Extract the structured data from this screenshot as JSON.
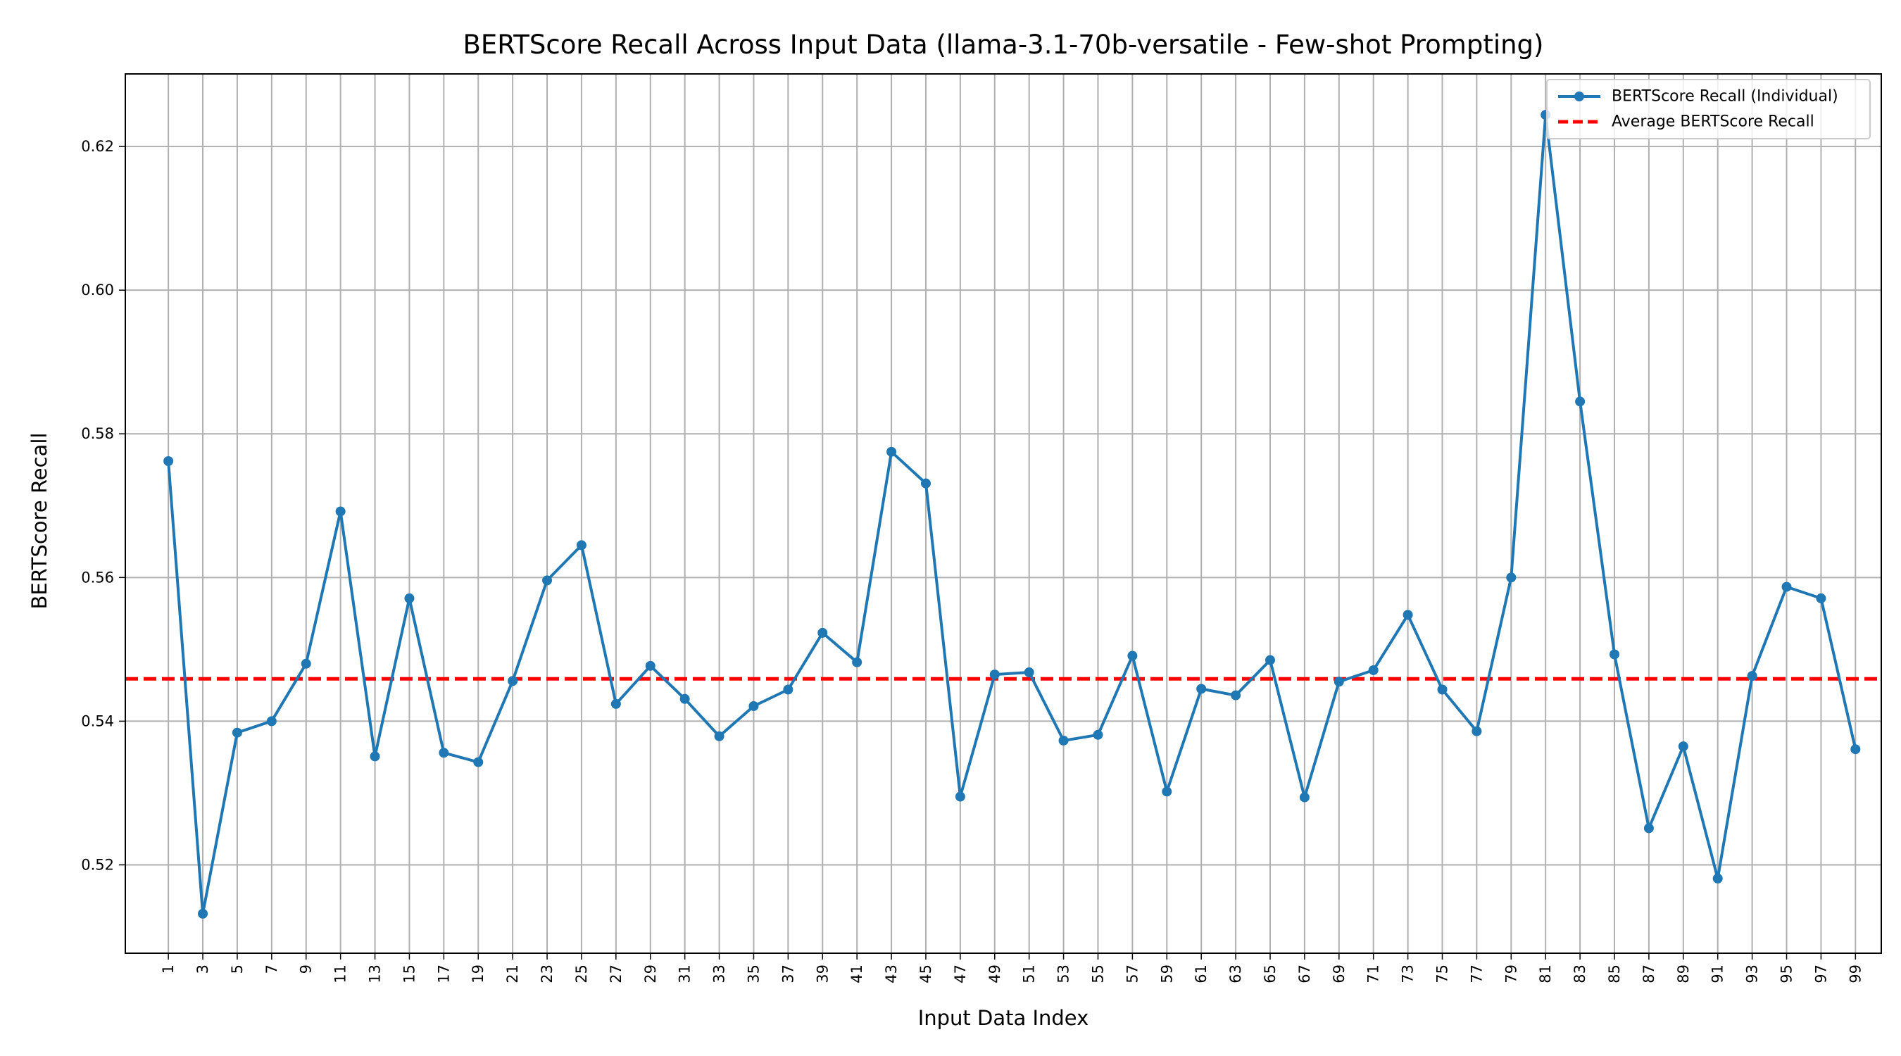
{
  "chart_data": {
    "type": "line",
    "title": "BERTScore Recall Across Input Data (llama-3.1-70b-versatile - Few-shot Prompting)",
    "xlabel": "Input Data Index",
    "ylabel": "BERTScore Recall",
    "xlim": [
      -1.5,
      100.5
    ],
    "ylim": [
      0.5077,
      0.6301
    ],
    "x_ticks": [
      1,
      3,
      5,
      7,
      9,
      11,
      13,
      15,
      17,
      19,
      21,
      23,
      25,
      27,
      29,
      31,
      33,
      35,
      37,
      39,
      41,
      43,
      45,
      47,
      49,
      51,
      53,
      55,
      57,
      59,
      61,
      63,
      65,
      67,
      69,
      71,
      73,
      75,
      77,
      79,
      81,
      83,
      85,
      87,
      89,
      91,
      93,
      95,
      97,
      99
    ],
    "y_ticks": [
      0.52,
      0.54,
      0.56,
      0.58,
      0.6,
      0.62
    ],
    "y_tick_labels": [
      "0.52",
      "0.54",
      "0.56",
      "0.58",
      "0.60",
      "0.62"
    ],
    "grid": true,
    "legend_position": "top-right",
    "series": [
      {
        "name": "BERTScore Recall (Individual)",
        "color": "#1f77b4",
        "style": "solid-with-markers",
        "x": [
          1,
          3,
          5,
          7,
          9,
          11,
          13,
          15,
          17,
          19,
          21,
          23,
          25,
          27,
          29,
          31,
          33,
          35,
          37,
          39,
          41,
          43,
          45,
          47,
          49,
          51,
          53,
          55,
          57,
          59,
          61,
          63,
          65,
          67,
          69,
          71,
          73,
          75,
          77,
          79,
          81,
          83,
          85,
          87,
          89,
          91,
          93,
          95,
          97,
          99
        ],
        "values": [
          0.5762,
          0.5132,
          0.5384,
          0.54,
          0.548,
          0.5692,
          0.5351,
          0.5571,
          0.5356,
          0.5343,
          0.5456,
          0.5596,
          0.5645,
          0.5424,
          0.5477,
          0.5431,
          0.5379,
          0.5421,
          0.5444,
          0.5523,
          0.5482,
          0.5775,
          0.5731,
          0.5295,
          0.5465,
          0.5468,
          0.5373,
          0.5381,
          0.5491,
          0.5302,
          0.5445,
          0.5436,
          0.5485,
          0.5294,
          0.5455,
          0.5471,
          0.5548,
          0.5444,
          0.5386,
          0.56,
          0.6244,
          0.5845,
          0.5493,
          0.5251,
          0.5365,
          0.5181,
          0.5463,
          0.5587,
          0.5571,
          0.5361
        ]
      },
      {
        "name": "Average BERTScore Recall",
        "color": "#ff0000",
        "style": "dashed",
        "y": 0.5459
      }
    ]
  }
}
